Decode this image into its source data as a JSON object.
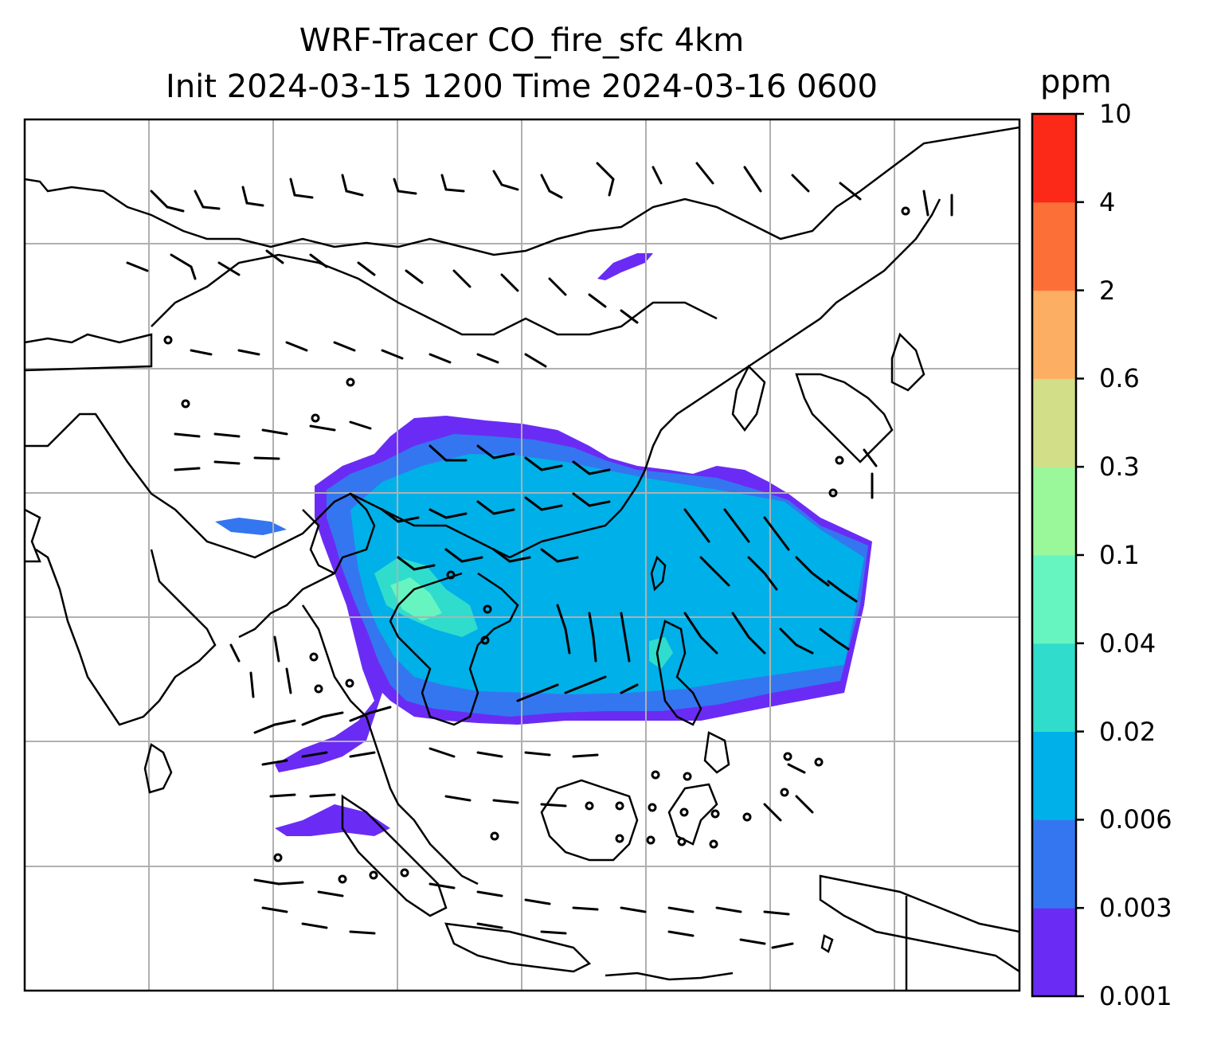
{
  "title": {
    "line1": "WRF-Tracer CO_fire_sfc 4km",
    "line2": "Init 2024-03-15 1200 Time 2024-03-16 0600"
  },
  "colorbar": {
    "unit": "ppm",
    "levels": [
      "0.001",
      "0.003",
      "0.006",
      "0.02",
      "0.04",
      "0.1",
      "0.3",
      "0.6",
      "2",
      "4",
      "10"
    ],
    "colors": [
      "#6a2cf5",
      "#3476f0",
      "#00b0e8",
      "#30dccc",
      "#66f5c0",
      "#9af79a",
      "#d2de88",
      "#fcaf62",
      "#fc7038",
      "#fc2818"
    ]
  },
  "map": {
    "background": "#ffffff",
    "gridline_color": "#b0b0b0",
    "coastline_color": "#000000"
  }
}
